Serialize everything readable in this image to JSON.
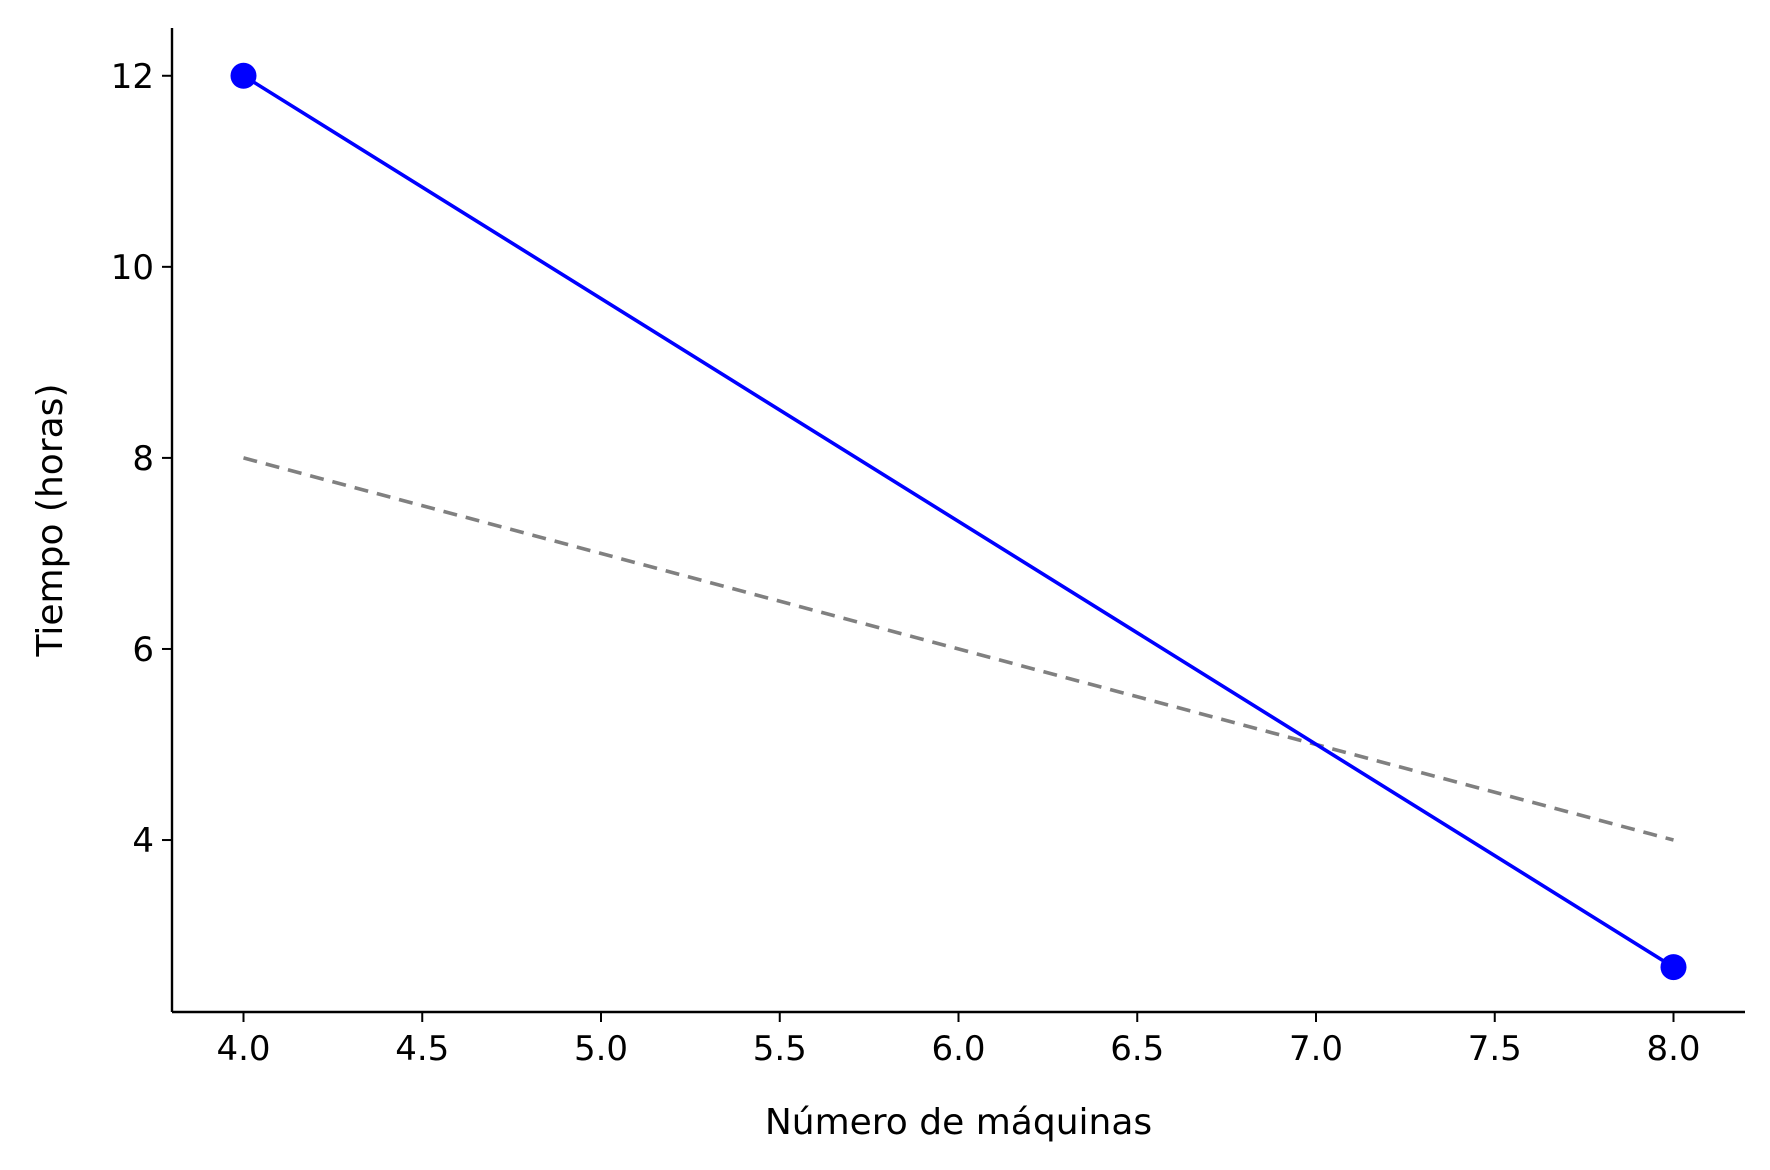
{
  "chart_data": {
    "type": "line",
    "title": "",
    "xlabel": "Número de máquinas",
    "ylabel": "Tiempo (horas)",
    "xlim": [
      3.8,
      8.2
    ],
    "ylim": [
      2.2,
      12.5
    ],
    "xticks": [
      4.0,
      4.5,
      5.0,
      5.5,
      6.0,
      6.5,
      7.0,
      7.5,
      8.0
    ],
    "xtick_labels": [
      "4.0",
      "4.5",
      "5.0",
      "5.5",
      "6.0",
      "6.5",
      "7.0",
      "7.5",
      "8.0"
    ],
    "yticks": [
      4,
      6,
      8,
      10,
      12
    ],
    "ytick_labels": [
      "4",
      "6",
      "8",
      "10",
      "12"
    ],
    "grid": false,
    "legend": false,
    "series": [
      {
        "x": [
          4,
          8
        ],
        "y": [
          12,
          2.67
        ],
        "color": "#0000ff",
        "style": "solid",
        "markers": true
      },
      {
        "x": [
          4,
          8
        ],
        "y": [
          8,
          4
        ],
        "color": "#808080",
        "style": "dashed",
        "markers": false
      }
    ]
  }
}
